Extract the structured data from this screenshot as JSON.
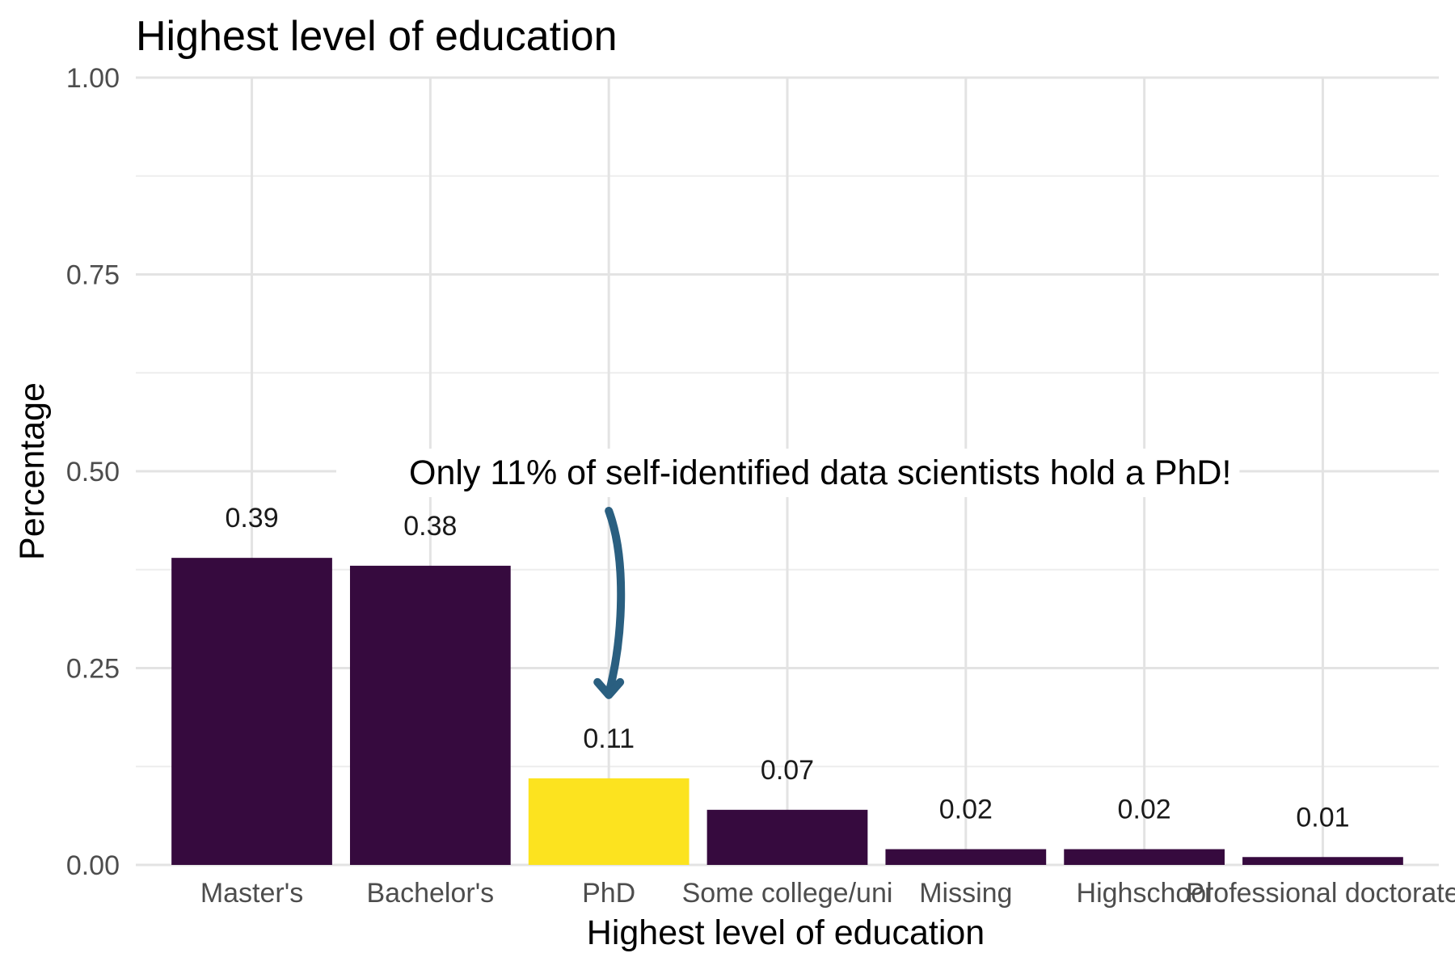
{
  "chart_data": {
    "type": "bar",
    "title": "Highest level of education",
    "xlabel": "Highest level of education",
    "ylabel": "Percentage",
    "ylim": [
      0,
      1
    ],
    "yticks": [
      "0.00",
      "0.25",
      "0.50",
      "0.75",
      "1.00"
    ],
    "grid": true,
    "categories": [
      "Master's",
      "Bachelor's",
      "PhD",
      "Some college/uni",
      "Missing",
      "Highschool",
      "Professional doctorate"
    ],
    "values": [
      0.39,
      0.38,
      0.11,
      0.07,
      0.02,
      0.02,
      0.01
    ],
    "data_labels": [
      "0.39",
      "0.38",
      "0.11",
      "0.07",
      "0.02",
      "0.02",
      "0.01"
    ],
    "highlight_category": "PhD",
    "colors": {
      "bar": "#360a3e",
      "highlight": "#fce31f",
      "arrow": "#2a5f80"
    },
    "annotation": {
      "text": "Only 11% of self-identified data scientists hold a PhD!",
      "target_category": "PhD"
    }
  }
}
